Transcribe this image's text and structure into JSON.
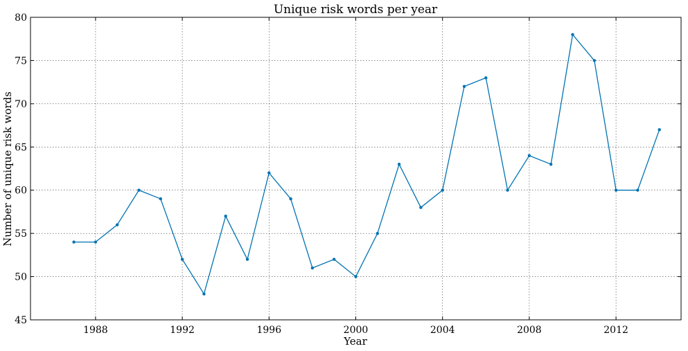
{
  "chart_data": {
    "type": "line",
    "title": "Unique risk words per year",
    "xlabel": "Year",
    "ylabel": "Number of unique risk words",
    "xlim": [
      1985,
      2015
    ],
    "ylim": [
      45,
      80
    ],
    "x_ticks": [
      1988,
      1992,
      1996,
      2000,
      2004,
      2008,
      2012
    ],
    "y_ticks": [
      45,
      50,
      55,
      60,
      65,
      70,
      75,
      80
    ],
    "grid": true,
    "series": [
      {
        "color": "#0072B2",
        "x": [
          1987,
          1988,
          1989,
          1990,
          1991,
          1992,
          1993,
          1994,
          1995,
          1996,
          1997,
          1998,
          1999,
          2000,
          2001,
          2002,
          2003,
          2004,
          2005,
          2006,
          2007,
          2008,
          2009,
          2010,
          2011,
          2012,
          2013,
          2014
        ],
        "values": [
          54,
          54,
          56,
          60,
          59,
          52,
          48,
          57,
          52,
          62,
          59,
          51,
          52,
          50,
          55,
          63,
          58,
          60,
          72,
          73,
          60,
          64,
          63,
          78,
          75,
          60,
          60,
          67
        ]
      }
    ]
  }
}
